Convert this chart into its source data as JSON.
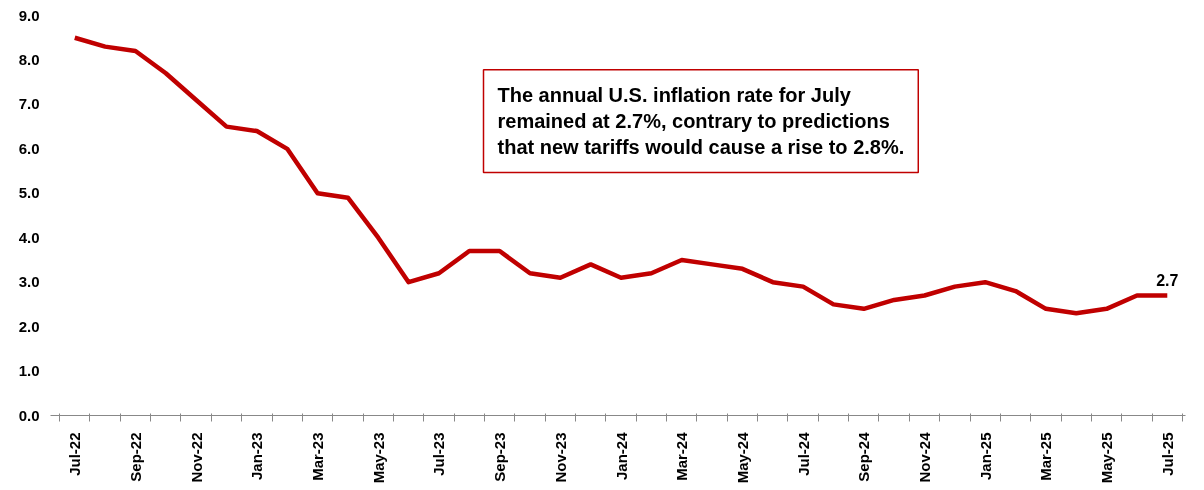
{
  "chart_data": {
    "type": "line",
    "categories": [
      "Jul-22",
      null,
      "Sep-22",
      null,
      "Nov-22",
      null,
      "Jan-23",
      null,
      "Mar-23",
      null,
      "May-23",
      null,
      "Jul-23",
      null,
      "Sep-23",
      null,
      "Nov-23",
      null,
      "Jan-24",
      null,
      "Mar-24",
      null,
      "May-24",
      null,
      "Jul-24",
      null,
      "Sep-24",
      null,
      "Nov-24",
      null,
      "Jan-25",
      null,
      "Mar-25",
      null,
      "May-25",
      null,
      "Jul-25"
    ],
    "series": [
      {
        "color": "#c00000",
        "values": [
          8.5,
          8.3,
          8.2,
          7.7,
          7.1,
          6.5,
          6.4,
          6.0,
          5.0,
          4.9,
          4.0,
          3.0,
          3.2,
          3.7,
          3.7,
          3.2,
          3.1,
          3.4,
          3.1,
          3.2,
          3.5,
          3.4,
          3.3,
          3.0,
          2.9,
          2.5,
          2.4,
          2.6,
          2.7,
          2.9,
          3.0,
          2.8,
          2.4,
          2.3,
          2.4,
          2.7,
          2.7
        ],
        "value_labels": [
          null,
          null,
          null,
          null,
          null,
          null,
          null,
          null,
          null,
          null,
          null,
          null,
          null,
          null,
          null,
          null,
          null,
          null,
          null,
          null,
          null,
          null,
          null,
          null,
          null,
          null,
          null,
          null,
          null,
          null,
          null,
          null,
          null,
          null,
          null,
          null,
          "2.7"
        ]
      }
    ],
    "ylim": [
      0,
      9
    ],
    "yticks": [
      {
        "value": 0,
        "label": "0.0"
      },
      {
        "value": 1,
        "label": "1.0"
      },
      {
        "value": 2,
        "label": "2.0"
      },
      {
        "value": 3,
        "label": "3.0"
      },
      {
        "value": 4,
        "label": "4.0"
      },
      {
        "value": 5,
        "label": "5.0"
      },
      {
        "value": 6,
        "label": "6.0"
      },
      {
        "value": 7,
        "label": "7.0"
      },
      {
        "value": 8,
        "label": "8.0"
      },
      {
        "value": 9,
        "label": "9.0"
      }
    ],
    "annotations": [
      "The annual U.S. inflation rate for July remained at 2.7%, contrary to predictions that new tariffs would cause a rise to 2.8%."
    ],
    "grid": false,
    "line_style": "solid",
    "marker": "none"
  }
}
